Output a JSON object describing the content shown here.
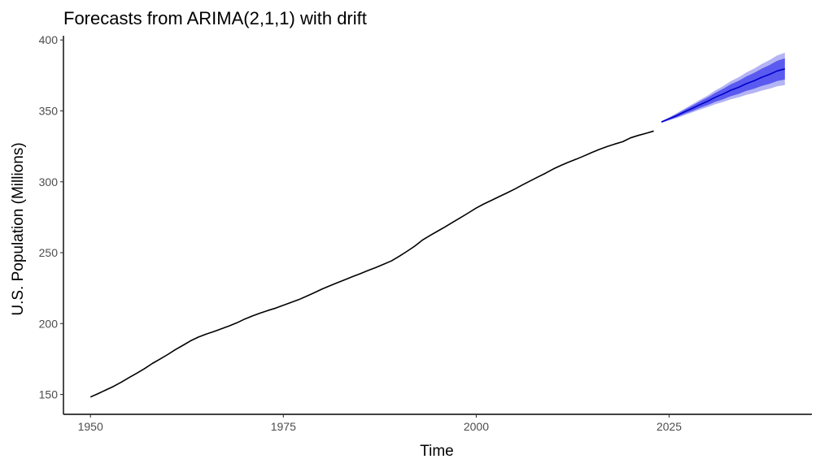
{
  "chart_data": {
    "type": "line",
    "title": "Forecasts from ARIMA(2,1,1) with drift",
    "xlabel": "Time",
    "ylabel": "U.S. Population (Millions)",
    "xlim": [
      1946.5,
      2043.5
    ],
    "ylim": [
      136,
      403
    ],
    "x_ticks": [
      1950,
      1975,
      2000,
      2025
    ],
    "y_ticks": [
      150,
      200,
      250,
      300,
      350,
      400
    ],
    "grid": false,
    "legend": "none",
    "colors": {
      "history": "#000000",
      "forecast": "#0000cc",
      "band80": "#5a5af0",
      "band95": "#b4b4f4"
    },
    "history": {
      "x": [
        1950,
        1951,
        1952,
        1953,
        1954,
        1955,
        1956,
        1957,
        1958,
        1959,
        1960,
        1961,
        1962,
        1963,
        1964,
        1965,
        1966,
        1967,
        1968,
        1969,
        1970,
        1971,
        1972,
        1973,
        1974,
        1975,
        1976,
        1977,
        1978,
        1979,
        1980,
        1981,
        1982,
        1983,
        1984,
        1985,
        1986,
        1987,
        1988,
        1989,
        1990,
        1991,
        1992,
        1993,
        1994,
        1995,
        1996,
        1997,
        1998,
        1999,
        2000,
        2001,
        2002,
        2003,
        2004,
        2005,
        2006,
        2007,
        2008,
        2009,
        2010,
        2011,
        2012,
        2013,
        2014,
        2015,
        2016,
        2017,
        2018,
        2019,
        2020,
        2021,
        2022,
        2023
      ],
      "y": [
        148.2,
        150.6,
        153.2,
        155.7,
        158.7,
        161.9,
        165.0,
        168.2,
        171.8,
        174.9,
        178.1,
        181.6,
        184.7,
        187.9,
        190.5,
        192.6,
        194.4,
        196.4,
        198.4,
        200.6,
        203.2,
        205.4,
        207.4,
        209.2,
        210.9,
        212.9,
        214.9,
        216.9,
        219.3,
        221.7,
        224.3,
        226.6,
        228.8,
        231.0,
        233.2,
        235.3,
        237.5,
        239.6,
        241.8,
        244.2,
        247.4,
        250.9,
        254.5,
        258.8,
        262.1,
        265.2,
        268.3,
        271.6,
        274.8,
        278.1,
        281.5,
        284.4,
        287.0,
        289.6,
        292.2,
        294.9,
        297.8,
        300.6,
        303.4,
        306.1,
        309.1,
        311.6,
        313.9,
        316.0,
        318.3,
        320.7,
        322.9,
        324.9,
        326.7,
        328.3,
        331.0,
        332.7,
        334.2,
        335.8
      ]
    },
    "forecast": {
      "x": [
        2024,
        2025,
        2026,
        2027,
        2028,
        2029,
        2030,
        2031,
        2032,
        2033,
        2034,
        2035,
        2036,
        2037,
        2038,
        2039,
        2040
      ],
      "mean": [
        342.2,
        344.4,
        346.7,
        349.3,
        351.8,
        354.4,
        356.8,
        359.6,
        361.9,
        364.6,
        366.6,
        369.2,
        371.2,
        373.7,
        375.7,
        378.2,
        379.6
      ],
      "lo80": [
        341.8,
        343.7,
        345.6,
        347.8,
        349.9,
        352.1,
        354.1,
        356.4,
        358.2,
        360.4,
        362.0,
        364.1,
        365.6,
        367.6,
        369.1,
        371.1,
        372.1
      ],
      "hi80": [
        342.6,
        345.1,
        347.8,
        350.8,
        353.7,
        356.7,
        359.5,
        362.8,
        365.6,
        368.8,
        371.2,
        374.3,
        376.8,
        379.8,
        382.3,
        385.3,
        387.1
      ],
      "lo95": [
        341.6,
        343.3,
        345.0,
        347.0,
        348.9,
        350.9,
        352.7,
        354.7,
        356.3,
        358.2,
        359.5,
        361.3,
        362.6,
        364.3,
        365.6,
        367.3,
        368.2
      ],
      "hi95": [
        342.8,
        345.5,
        348.4,
        351.6,
        354.7,
        357.9,
        360.9,
        364.5,
        367.5,
        371.0,
        373.7,
        377.1,
        379.8,
        383.1,
        385.8,
        389.1,
        391.0
      ]
    }
  }
}
